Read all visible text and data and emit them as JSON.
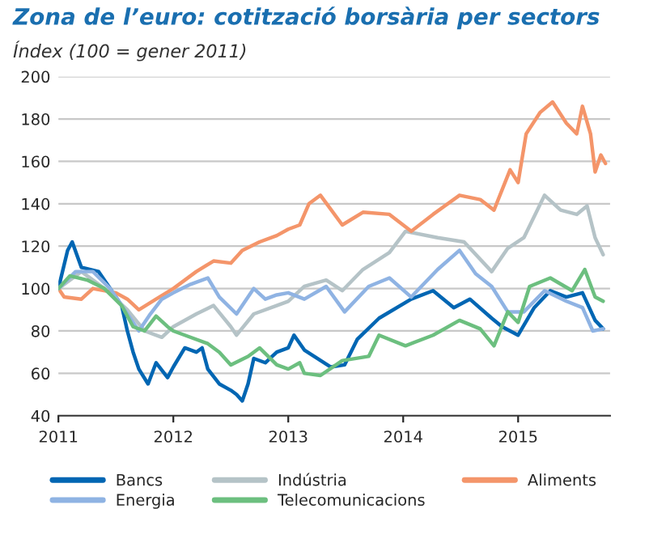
{
  "chart_data": {
    "type": "line",
    "title": "Zona de l’euro: cotització borsària per sectors",
    "subtitle": "Índex (100 = gener 2011)",
    "xlim": [
      2011,
      2015.8
    ],
    "xticks": [
      2011,
      2012,
      2013,
      2014,
      2015
    ],
    "ylim": [
      40,
      200
    ],
    "yticks": [
      40,
      60,
      80,
      100,
      120,
      140,
      160,
      180,
      200
    ],
    "grid": "y",
    "legend": "bottom",
    "line_style": "solid",
    "marker": "none",
    "series": [
      {
        "name": "Bancs",
        "color": "#0066b3",
        "x": [
          2011,
          2011.08,
          2011.12,
          2011.2,
          2011.35,
          2011.45,
          2011.55,
          2011.6,
          2011.65,
          2011.7,
          2011.78,
          2011.85,
          2011.95,
          2012.0,
          2012.1,
          2012.2,
          2012.25,
          2012.3,
          2012.4,
          2012.5,
          2012.55,
          2012.6,
          2012.65,
          2012.7,
          2012.8,
          2012.9,
          2013.0,
          2013.05,
          2013.14,
          2013.37,
          2013.49,
          2013.6,
          2013.79,
          2014.07,
          2014.26,
          2014.44,
          2014.58,
          2014.77,
          2014.86,
          2015.0,
          2015.14,
          2015.28,
          2015.42,
          2015.56,
          2015.67,
          2015.74
        ],
        "values": [
          100,
          118,
          122,
          110,
          108,
          100,
          92,
          80,
          70,
          62,
          55,
          65,
          58,
          63,
          72,
          70,
          72,
          62,
          55,
          52,
          50,
          47,
          55,
          67,
          65,
          70,
          72,
          78,
          71,
          63,
          64,
          76,
          86,
          95,
          99,
          91,
          95,
          86,
          82,
          78,
          91,
          99,
          96,
          98,
          85,
          81
        ]
      },
      {
        "name": "Indústria",
        "color": "#b5c3c7",
        "x": [
          2011,
          2011.2,
          2011.4,
          2011.6,
          2011.75,
          2011.9,
          2012.0,
          2012.2,
          2012.35,
          2012.5,
          2012.55,
          2012.7,
          2012.9,
          2013.0,
          2013.14,
          2013.33,
          2013.47,
          2013.65,
          2013.88,
          2014.02,
          2014.3,
          2014.53,
          2014.77,
          2014.91,
          2015.05,
          2015.23,
          2015.37,
          2015.51,
          2015.6,
          2015.67,
          2015.74
        ],
        "values": [
          100,
          108,
          100,
          90,
          80,
          77,
          82,
          88,
          92,
          82,
          78,
          88,
          92,
          94,
          101,
          104,
          99,
          109,
          117,
          127,
          124,
          122,
          108,
          119,
          124,
          144,
          137,
          135,
          139,
          124,
          116
        ]
      },
      {
        "name": "Aliments",
        "color": "#f4956a",
        "x": [
          2011,
          2011.05,
          2011.2,
          2011.3,
          2011.5,
          2011.6,
          2011.7,
          2011.85,
          2012.0,
          2012.2,
          2012.35,
          2012.5,
          2012.6,
          2012.75,
          2012.9,
          2013.0,
          2013.1,
          2013.18,
          2013.28,
          2013.47,
          2013.65,
          2013.88,
          2014.07,
          2014.26,
          2014.49,
          2014.67,
          2014.79,
          2014.93,
          2015.0,
          2015.07,
          2015.19,
          2015.3,
          2015.42,
          2015.51,
          2015.56,
          2015.63,
          2015.67,
          2015.72,
          2015.76
        ],
        "values": [
          100,
          96,
          95,
          100,
          98,
          95,
          90,
          95,
          100,
          108,
          113,
          112,
          118,
          122,
          125,
          128,
          130,
          140,
          144,
          130,
          136,
          135,
          127,
          135,
          144,
          142,
          137,
          156,
          150,
          173,
          183,
          188,
          178,
          173,
          186,
          173,
          155,
          163,
          159
        ]
      },
      {
        "name": "Energia",
        "color": "#8fb3e3",
        "x": [
          2011,
          2011.15,
          2011.3,
          2011.45,
          2011.6,
          2011.7,
          2011.8,
          2011.9,
          2012.0,
          2012.15,
          2012.3,
          2012.4,
          2012.55,
          2012.7,
          2012.8,
          2012.9,
          2013.0,
          2013.14,
          2013.33,
          2013.49,
          2013.7,
          2013.88,
          2014.07,
          2014.3,
          2014.49,
          2014.63,
          2014.77,
          2014.91,
          2015.05,
          2015.23,
          2015.42,
          2015.56,
          2015.65,
          2015.74
        ],
        "values": [
          100,
          108,
          108,
          100,
          88,
          80,
          88,
          95,
          98,
          102,
          105,
          96,
          88,
          100,
          95,
          97,
          98,
          95,
          101,
          89,
          101,
          105,
          96,
          109,
          118,
          107,
          101,
          89,
          89,
          99,
          94,
          91,
          80,
          81
        ]
      },
      {
        "name": "Telecomunicacions",
        "color": "#6cbf7f",
        "x": [
          2011,
          2011.1,
          2011.25,
          2011.4,
          2011.55,
          2011.65,
          2011.75,
          2011.85,
          2011.95,
          2012.0,
          2012.1,
          2012.3,
          2012.4,
          2012.5,
          2012.65,
          2012.75,
          2012.9,
          2013.0,
          2013.1,
          2013.14,
          2013.28,
          2013.47,
          2013.7,
          2013.79,
          2014.02,
          2014.26,
          2014.49,
          2014.67,
          2014.79,
          2014.91,
          2015.0,
          2015.1,
          2015.28,
          2015.47,
          2015.58,
          2015.67,
          2015.74
        ],
        "values": [
          100,
          106,
          104,
          100,
          92,
          82,
          80,
          87,
          82,
          80,
          78,
          74,
          70,
          64,
          68,
          72,
          64,
          62,
          65,
          60,
          59,
          66,
          68,
          78,
          73,
          78,
          85,
          81,
          73,
          89,
          84,
          101,
          105,
          99,
          109,
          96,
          94
        ]
      }
    ]
  }
}
